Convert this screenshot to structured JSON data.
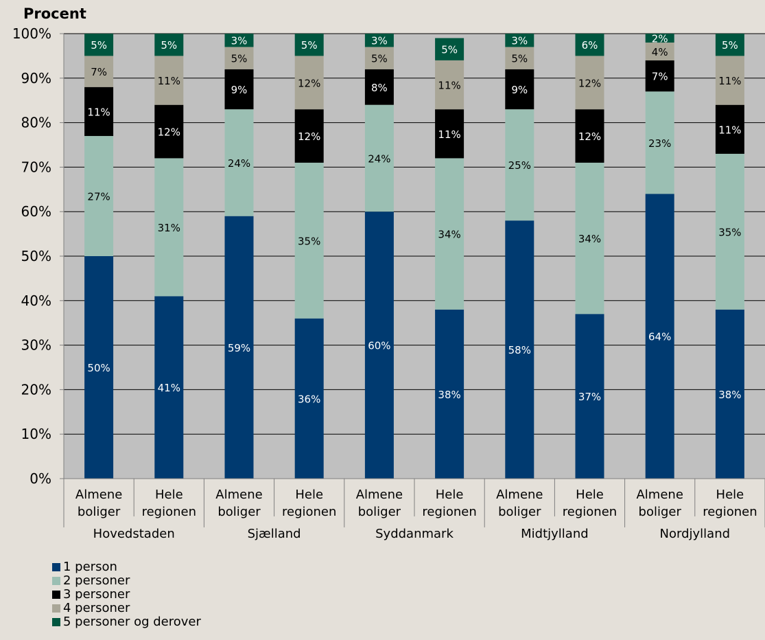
{
  "chart_data": {
    "type": "bar",
    "stacked": "percent",
    "ylabel": "Procent",
    "ylim": [
      0,
      100
    ],
    "yticks": [
      "0%",
      "10%",
      "20%",
      "30%",
      "40%",
      "50%",
      "60%",
      "70%",
      "80%",
      "90%",
      "100%"
    ],
    "grid": true,
    "legend_position": "bottom-left",
    "groups": [
      "Hovedstaden",
      "Sjælland",
      "Syddanmark",
      "Midtjylland",
      "Nordjylland"
    ],
    "subcategories": [
      [
        "Almene",
        "boliger"
      ],
      [
        "Hele",
        "regionen"
      ]
    ],
    "series": [
      {
        "name": "1 person",
        "color": "#003a70",
        "values": [
          50,
          41,
          59,
          36,
          60,
          38,
          58,
          37,
          64,
          38
        ],
        "labels": [
          "50%",
          "41%",
          "59%",
          "36%",
          "60%",
          "38%",
          "58%",
          "37%",
          "64%",
          "38%"
        ],
        "label_color": "#ffffff"
      },
      {
        "name": "2 personer",
        "color": "#9bbfb3",
        "values": [
          27,
          31,
          24,
          35,
          24,
          34,
          25,
          34,
          23,
          35
        ],
        "labels": [
          "27%",
          "31%",
          "24%",
          "35%",
          "24%",
          "34%",
          "25%",
          "34%",
          "23%",
          "35%"
        ],
        "label_color": "#000000"
      },
      {
        "name": "3 personer",
        "color": "#000000",
        "values": [
          11,
          12,
          9,
          12,
          8,
          11,
          9,
          12,
          7,
          11
        ],
        "labels": [
          "11%",
          "12%",
          "9%",
          "12%",
          "8%",
          "11%",
          "9%",
          "12%",
          "7%",
          "11%"
        ],
        "label_color": "#ffffff"
      },
      {
        "name": "4 personer",
        "color": "#a9a697",
        "values": [
          7,
          11,
          5,
          12,
          5,
          11,
          5,
          12,
          4,
          11
        ],
        "labels": [
          "7%",
          "11%",
          "5%",
          "12%",
          "5%",
          "11%",
          "5%",
          "12%",
          "4%",
          "11%"
        ],
        "label_color": "#000000"
      },
      {
        "name": "5 personer og derover",
        "color": "#00563f",
        "values": [
          5,
          5,
          3,
          5,
          3,
          5,
          3,
          6,
          2,
          5
        ],
        "labels": [
          "5%",
          "5%",
          "3%",
          "5%",
          "3%",
          "5%",
          "3%",
          "6%",
          "2%",
          "5%"
        ],
        "label_color": "#ffffff"
      }
    ],
    "colors": {
      "plot_background": "#c0c0c0",
      "page_background": "#e4e0d9",
      "gridline": "#000000"
    }
  }
}
